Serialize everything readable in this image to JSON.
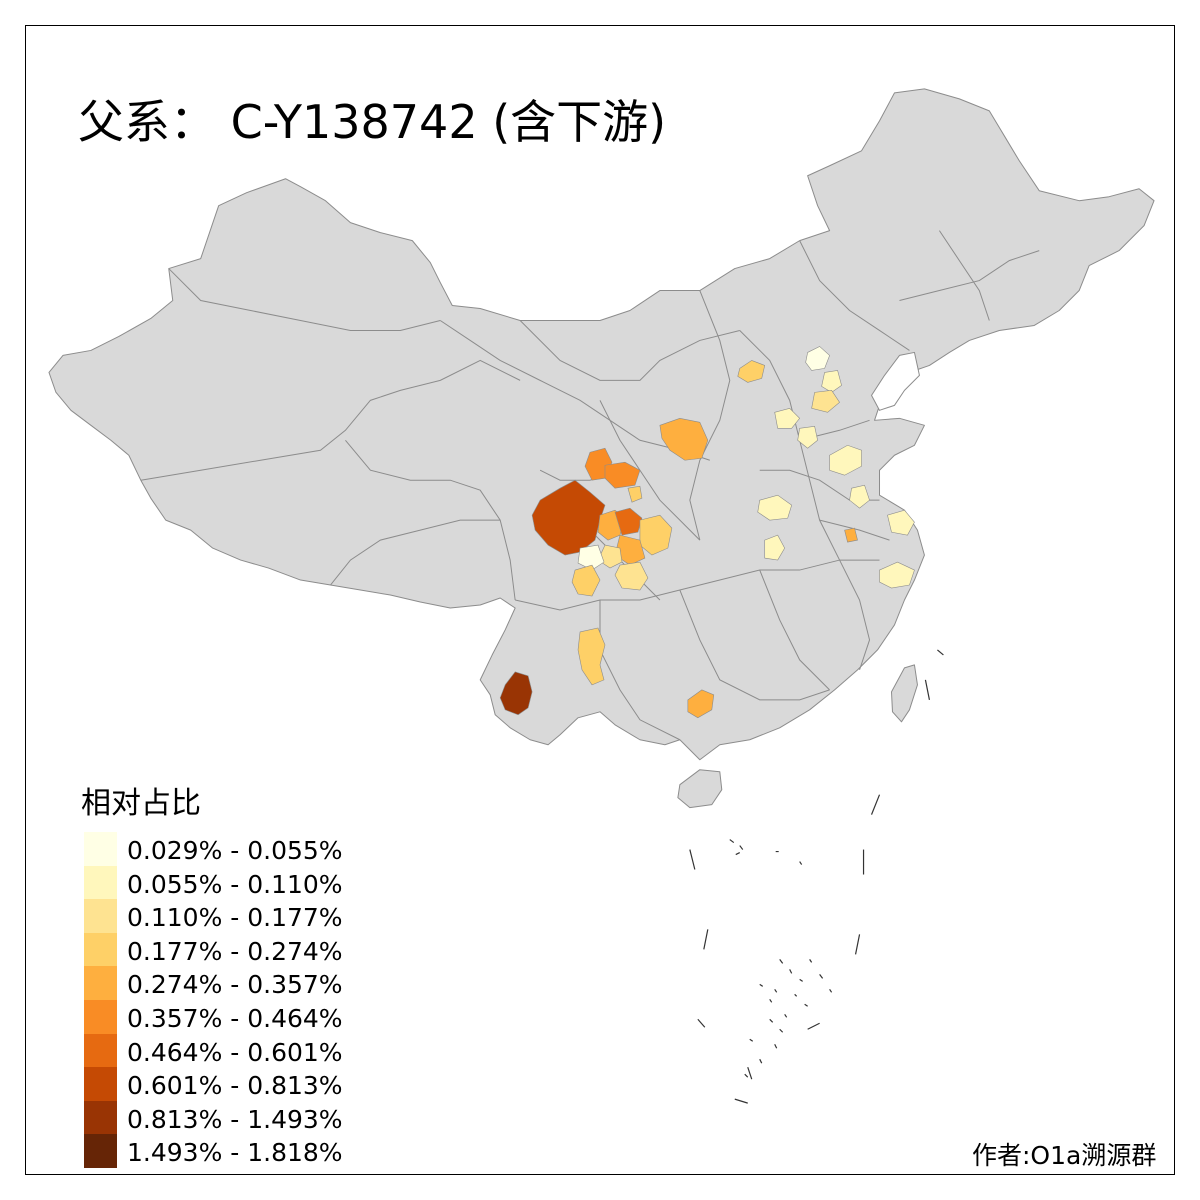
{
  "title": "父系： C-Y138742 (含下游)",
  "legend": {
    "title": "相对占比",
    "items": [
      {
        "label": "0.029% - 0.055%",
        "color": "#FFFFE5"
      },
      {
        "label": "0.055% - 0.110%",
        "color": "#FFF7BC"
      },
      {
        "label": "0.110% - 0.177%",
        "color": "#FEE391"
      },
      {
        "label": "0.177% - 0.274%",
        "color": "#FED067"
      },
      {
        "label": "0.274% - 0.357%",
        "color": "#FEAF3F"
      },
      {
        "label": "0.357% - 0.464%",
        "color": "#F98C25"
      },
      {
        "label": "0.464% - 0.601%",
        "color": "#E66A11"
      },
      {
        "label": "0.601% - 0.813%",
        "color": "#C54A04"
      },
      {
        "label": "0.813% - 1.493%",
        "color": "#993404"
      },
      {
        "label": "1.493% - 1.818%",
        "color": "#662506"
      }
    ]
  },
  "author": "作者:O1a溯源群",
  "colors": {
    "land": "#D9D9D9",
    "border": "#8C8C8C",
    "frame": "#000000"
  }
}
